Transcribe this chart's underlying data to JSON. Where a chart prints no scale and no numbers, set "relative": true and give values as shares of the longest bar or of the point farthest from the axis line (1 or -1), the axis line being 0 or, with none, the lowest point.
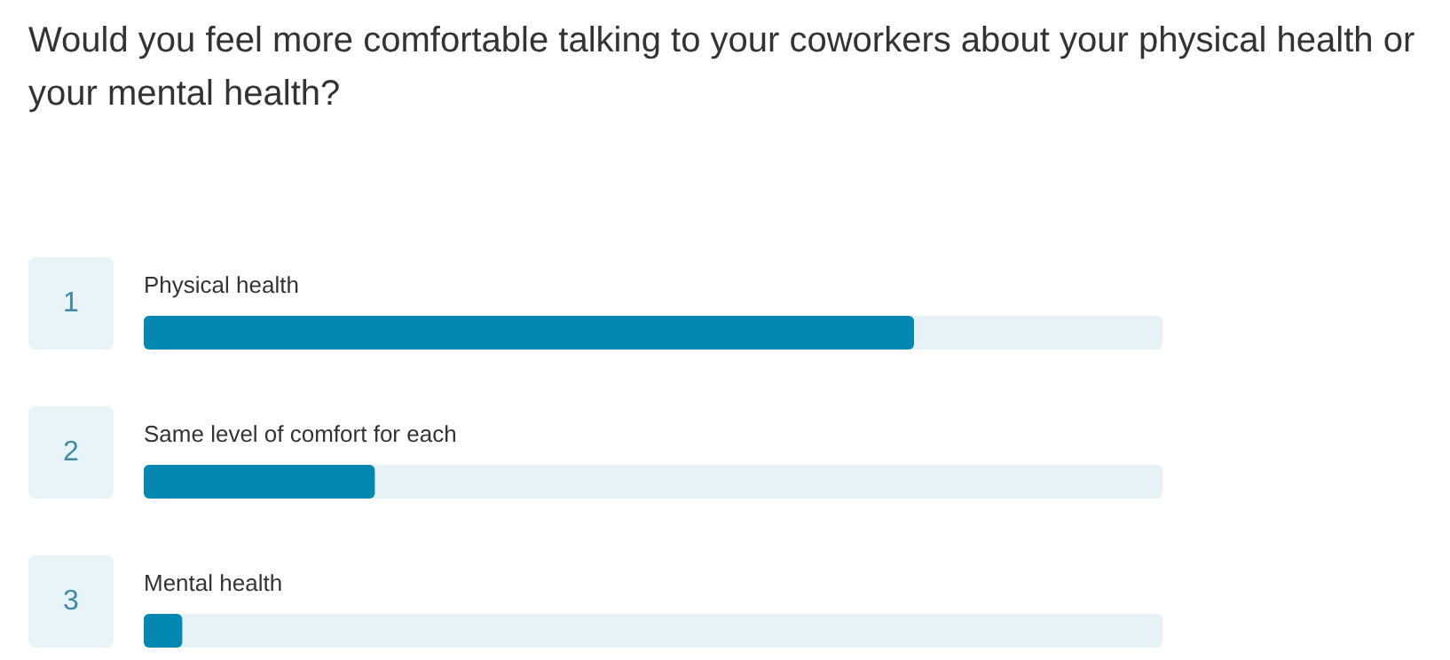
{
  "chart_data": {
    "type": "bar",
    "orientation": "horizontal",
    "relative": true,
    "title": "Would you feel more comfortable talking to your coworkers about your physical health or your mental health?",
    "categories": [
      "Physical health",
      "Same level of comfort for each",
      "Mental health"
    ],
    "values": [
      1,
      0.3,
      0.05
    ],
    "color": "#0288b1",
    "annotations": [
      "1",
      "2",
      "3"
    ]
  }
}
